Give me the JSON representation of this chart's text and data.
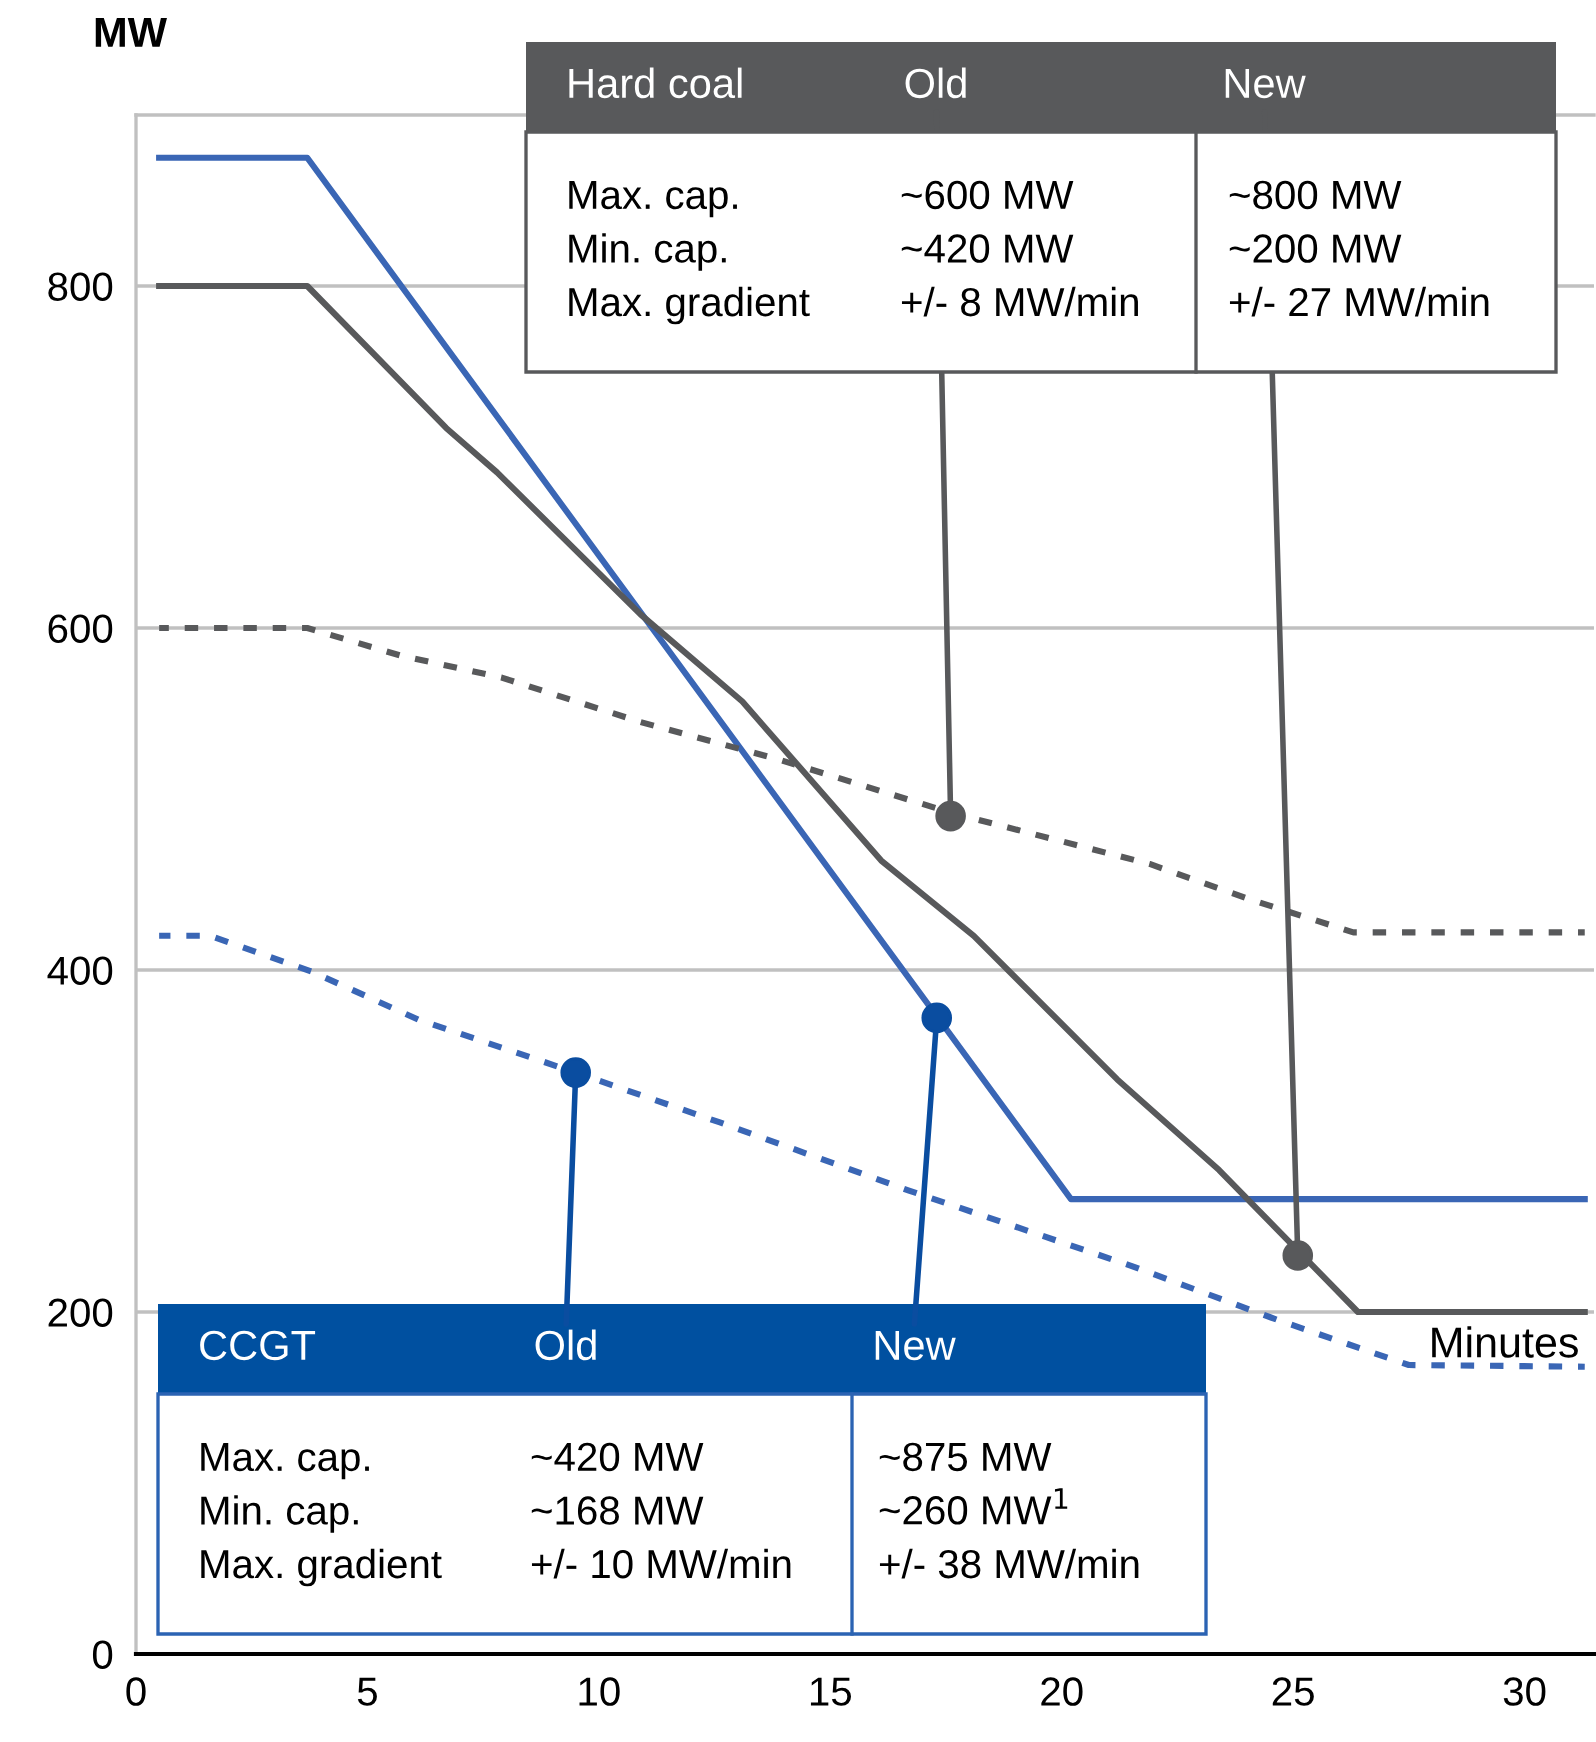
{
  "chart_data": {
    "type": "line",
    "xlabel": "Minutes",
    "ylabel": "MW",
    "xlim": [
      0,
      31.5
    ],
    "xticks": [
      0,
      5,
      10,
      15,
      20,
      25,
      30
    ],
    "ylim": [
      0,
      900
    ],
    "yticks": [
      0,
      200,
      400,
      600,
      800
    ],
    "grid": "y",
    "marker": "none",
    "series": [
      {
        "type": "line",
        "color": "#3a66b5",
        "line_style": "solid",
        "x": [
          0.5,
          3.7,
          20.2,
          31.3
        ],
        "values": [
          875,
          875,
          266,
          266
        ]
      },
      {
        "type": "line",
        "color": "#58595b",
        "line_style": "solid",
        "x": [
          0.5,
          3.7,
          6.7,
          7.8,
          10.9,
          13.1,
          16.1,
          18.1,
          21.2,
          23.4,
          26.4,
          31.3
        ],
        "values": [
          800,
          800,
          717,
          691,
          608,
          557,
          464,
          420,
          336,
          283,
          200,
          200
        ]
      },
      {
        "type": "line",
        "color": "#58595b",
        "line_style": "dashed",
        "x": [
          0.5,
          3.7,
          5.7,
          7.9,
          10.9,
          13.9,
          17.6,
          21.9,
          24.1,
          26.3,
          31.3
        ],
        "values": [
          600,
          600,
          584,
          571,
          545,
          523,
          492,
          462,
          441,
          422,
          422
        ]
      },
      {
        "type": "line",
        "color": "#3a66b5",
        "line_style": "dashed",
        "x": [
          0.5,
          1.6,
          3.8,
          6.1,
          9.5,
          12.6,
          16.7,
          21.5,
          24.7,
          27.5,
          31.3
        ],
        "values": [
          420,
          420,
          399,
          371,
          340,
          311,
          271,
          227,
          195,
          169,
          168
        ]
      }
    ],
    "annotations": [
      "Hard coal",
      {
        "text": "Old",
        "x": 17.6,
        "y": 490
      },
      {
        "text": "New",
        "x": 25.1,
        "y": 233
      },
      "Max. cap.\nMin. cap.\nMax. gradient",
      "~600 MW\n~420 MW\n+/- 8 MW/min",
      "~800 MW\n~200 MW\n+/- 27 MW/min",
      "CCGT",
      {
        "text": "Old",
        "x": 9.5,
        "y": 340
      },
      {
        "text": "New",
        "x": 17.3,
        "y": 372
      },
      "Max. cap.\nMin. cap.\nMax. gradient",
      "~420 MW\n~168 MW\n+/- 10 MW/min",
      "~875 MW\n~260 MW$^{1}$\n+/- 38 MW/min"
    ]
  }
}
